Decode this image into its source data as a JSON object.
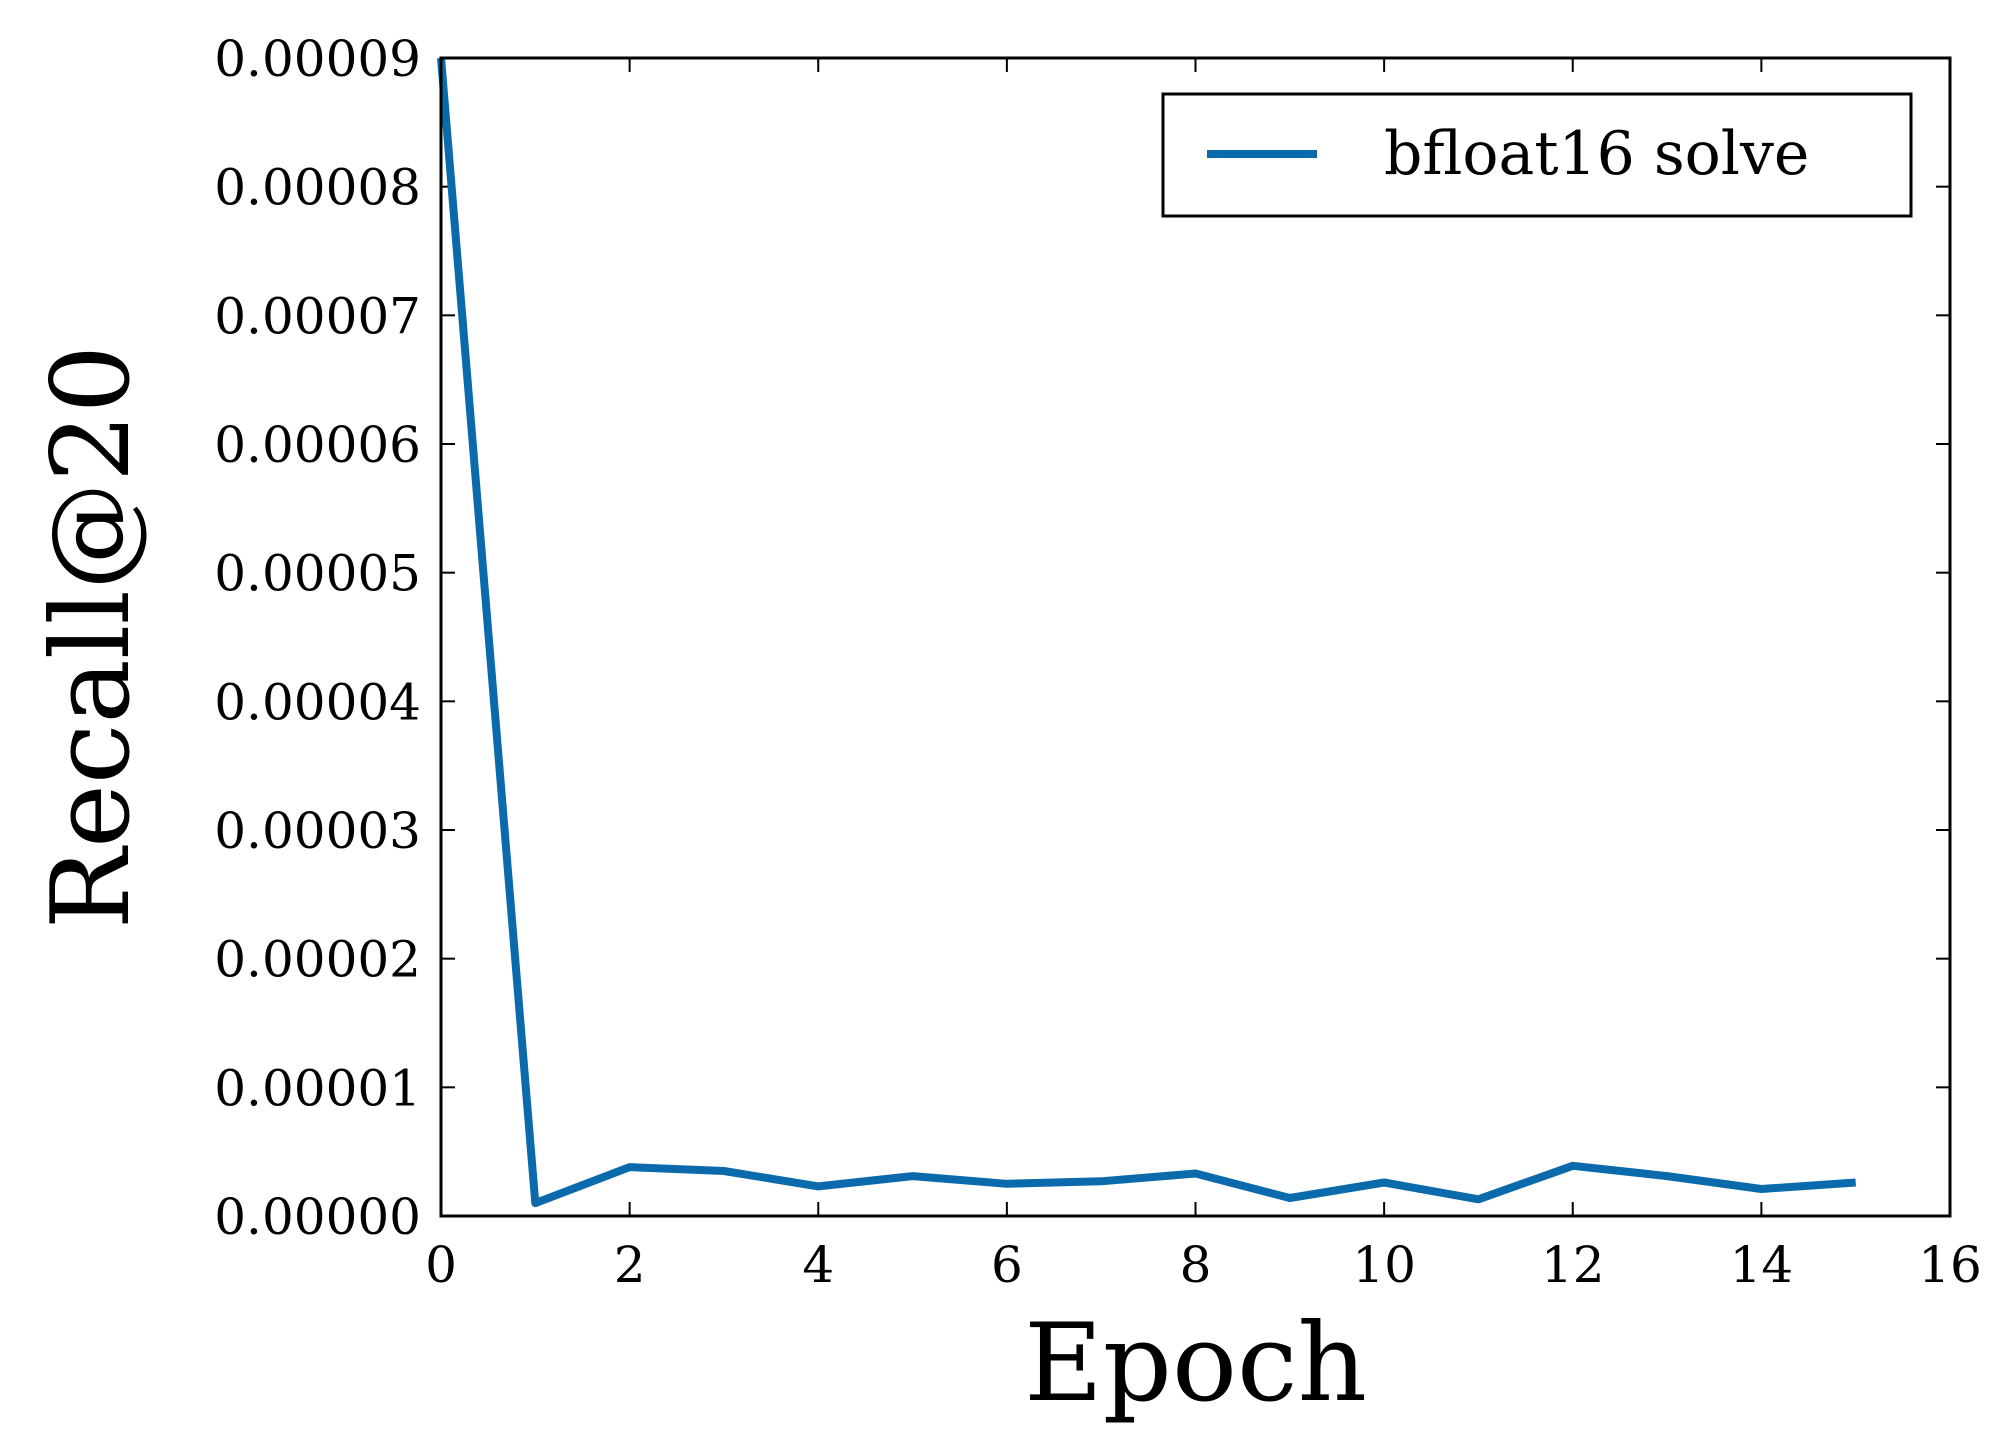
{
  "chart_data": {
    "type": "line",
    "title": "",
    "xlabel": "Epoch",
    "ylabel": "Recall@20",
    "xlim": [
      0,
      16
    ],
    "ylim": [
      0,
      9e-05
    ],
    "x_ticks": [
      0,
      2,
      4,
      6,
      8,
      10,
      12,
      14,
      16
    ],
    "x_tick_labels": [
      "0",
      "2",
      "4",
      "6",
      "8",
      "10",
      "12",
      "14",
      "16"
    ],
    "y_ticks": [
      0,
      1e-05,
      2e-05,
      3e-05,
      4e-05,
      5e-05,
      6e-05,
      7e-05,
      8e-05,
      9e-05
    ],
    "y_tick_labels": [
      "0.00000",
      "0.00001",
      "0.00002",
      "0.00003",
      "0.00004",
      "0.00005",
      "0.00006",
      "0.00007",
      "0.00008",
      "0.00009"
    ],
    "grid": false,
    "legend_position": "top-right",
    "series": [
      {
        "name": "bfloat16 solve",
        "color": "#0b6aab",
        "x": [
          0,
          1,
          2,
          3,
          4,
          5,
          6,
          7,
          8,
          9,
          10,
          11,
          12,
          13,
          14,
          15
        ],
        "y": [
          9e-05,
          1e-06,
          3.8e-06,
          3.5e-06,
          2.3e-06,
          3.1e-06,
          2.5e-06,
          2.7e-06,
          3.3e-06,
          1.4e-06,
          2.6e-06,
          1.3e-06,
          3.9e-06,
          3.1e-06,
          2.1e-06,
          2.6e-06
        ]
      }
    ]
  }
}
